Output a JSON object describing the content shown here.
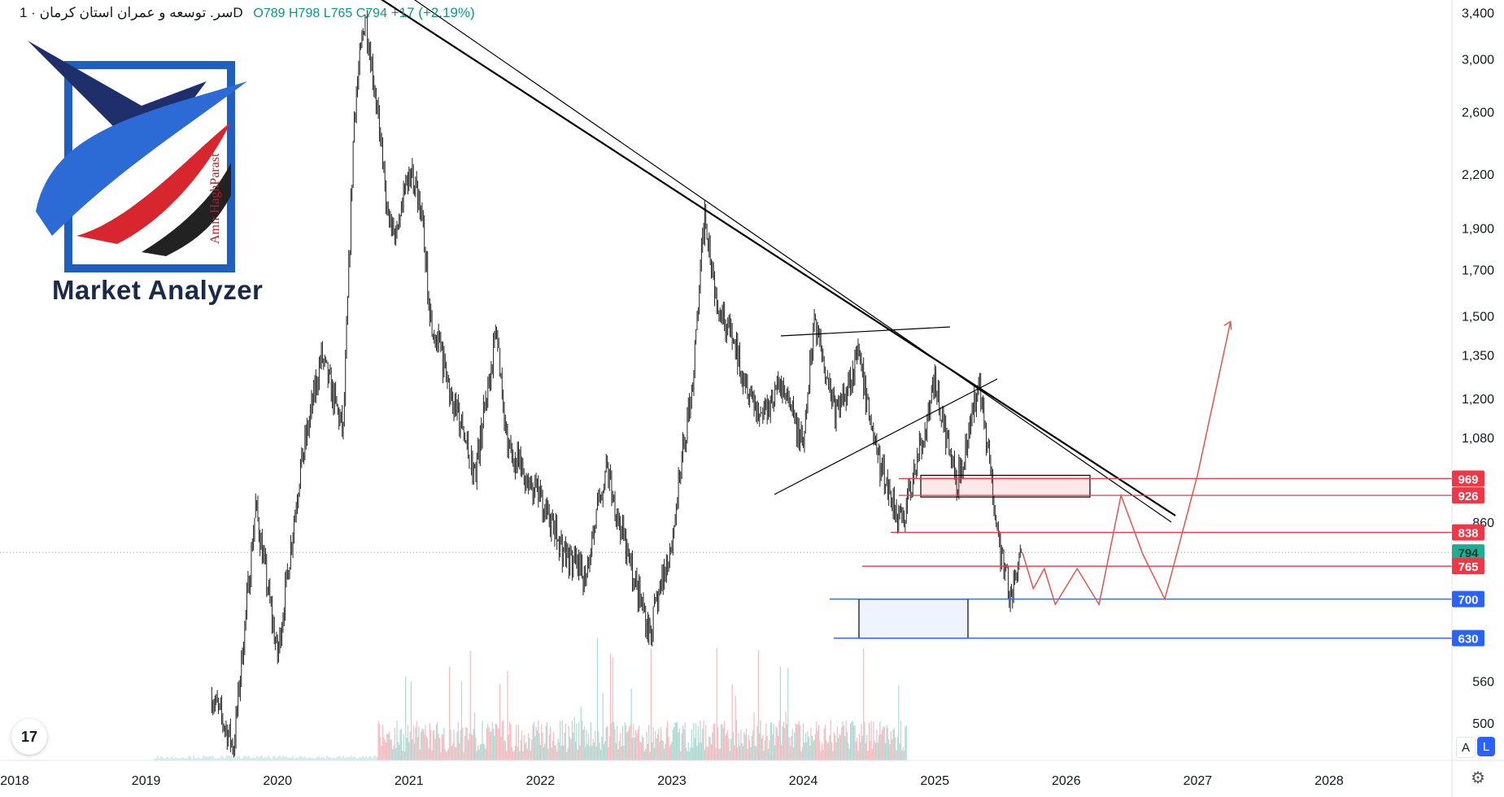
{
  "header": {
    "symbol": "سر. توسعه و عمران استان کرمان",
    "interval": "1D",
    "ohlc": "O789 H798 L765 C794",
    "change": "+17 (+2.19%)"
  },
  "logo": {
    "brand": "Market Analyzer",
    "author": "Amir HaghParast"
  },
  "toolbar": {
    "tv_logo": "17",
    "auto_scale": "A",
    "log_scale": "L",
    "settings_icon": "gear-icon"
  },
  "chart_data": {
    "type": "candlestick",
    "y_scale": "log",
    "y_ticks": [
      "3,400",
      "3,000",
      "2,600",
      "2,200",
      "1,900",
      "1,700",
      "1,500",
      "1,350",
      "1,200",
      "1,080",
      "860",
      "560",
      "500"
    ],
    "x_ticks": [
      "2018",
      "2019",
      "2020",
      "2021",
      "2022",
      "2023",
      "2024",
      "2025",
      "2026",
      "2027",
      "2028"
    ],
    "price_labels": [
      {
        "value": "969",
        "color": "#f23645"
      },
      {
        "value": "926",
        "color": "#f23645"
      },
      {
        "value": "838",
        "color": "#f23645"
      },
      {
        "value": "794",
        "color": "#22ab94"
      },
      {
        "value": "765",
        "color": "#f23645"
      },
      {
        "value": "700",
        "color": "#2962ff"
      },
      {
        "value": "630",
        "color": "#2962ff"
      }
    ],
    "price_path": [
      [
        "2019-07",
        540
      ],
      [
        "2019-09",
        470
      ],
      [
        "2019-11",
        900
      ],
      [
        "2020-01",
        600
      ],
      [
        "2020-03",
        980
      ],
      [
        "2020-05",
        1350
      ],
      [
        "2020-07",
        1100
      ],
      [
        "2020-08",
        2600
      ],
      [
        "2020-09",
        3400
      ],
      [
        "2020-10",
        2700
      ],
      [
        "2020-11",
        2000
      ],
      [
        "2020-12",
        1850
      ],
      [
        "2021-01",
        2250
      ],
      [
        "2021-02",
        2050
      ],
      [
        "2021-03",
        1500
      ],
      [
        "2021-05",
        1200
      ],
      [
        "2021-07",
        980
      ],
      [
        "2021-09",
        1450
      ],
      [
        "2021-10",
        1050
      ],
      [
        "2022-01",
        920
      ],
      [
        "2022-03",
        800
      ],
      [
        "2022-05",
        740
      ],
      [
        "2022-07",
        1000
      ],
      [
        "2022-09",
        780
      ],
      [
        "2022-11",
        640
      ],
      [
        "2023-01",
        820
      ],
      [
        "2023-03",
        1300
      ],
      [
        "2023-04",
        2000
      ],
      [
        "2023-05",
        1600
      ],
      [
        "2023-07",
        1350
      ],
      [
        "2023-09",
        1150
      ],
      [
        "2023-11",
        1250
      ],
      [
        "2024-01",
        1050
      ],
      [
        "2024-02",
        1500
      ],
      [
        "2024-04",
        1150
      ],
      [
        "2024-06",
        1350
      ],
      [
        "2024-08",
        1000
      ],
      [
        "2024-10",
        860
      ],
      [
        "2024-11",
        960
      ],
      [
        "2025-01",
        1250
      ],
      [
        "2025-03",
        950
      ],
      [
        "2025-05",
        1250
      ],
      [
        "2025-07",
        800
      ],
      [
        "2025-08",
        700
      ],
      [
        "2025-09",
        794
      ]
    ],
    "projection": [
      [
        "2025-09",
        794
      ],
      [
        "2025-10",
        720
      ],
      [
        "2025-11",
        760
      ],
      [
        "2025-12",
        690
      ],
      [
        "2026-02",
        760
      ],
      [
        "2026-04",
        690
      ],
      [
        "2026-06",
        926
      ],
      [
        "2026-08",
        790
      ],
      [
        "2026-10",
        700
      ],
      [
        "2027-01",
        980
      ],
      [
        "2027-04",
        1480
      ]
    ],
    "levels": [
      {
        "price": 969,
        "color": "#f23645"
      },
      {
        "price": 926,
        "color": "#f23645"
      },
      {
        "price": 838,
        "color": "#f23645"
      },
      {
        "price": 765,
        "color": "#f23645"
      },
      {
        "price": 700,
        "color": "#2962ff"
      },
      {
        "price": 630,
        "color": "#2962ff"
      }
    ],
    "resistance_zone": {
      "price_low": 926,
      "price_high": 969
    },
    "support_zone": {
      "price_low": 630,
      "price_high": 700
    },
    "last_price": 794,
    "colors": {
      "up": "#089981",
      "down": "#f23645",
      "candle": "#222222",
      "projection": "#e5534b"
    }
  }
}
